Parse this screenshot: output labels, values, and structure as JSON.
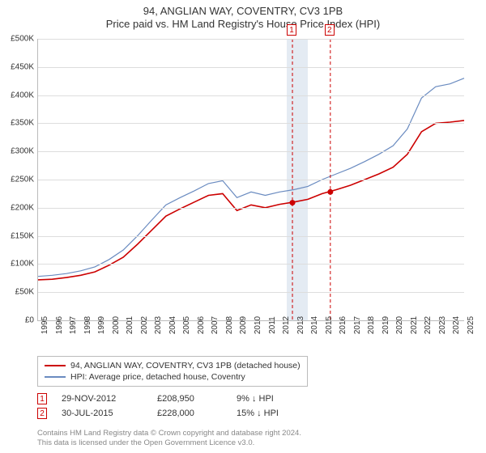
{
  "title_line1": "94, ANGLIAN WAY, COVENTRY, CV3 1PB",
  "title_line2": "Price paid vs. HM Land Registry's House Price Index (HPI)",
  "chart": {
    "type": "line",
    "x_years": [
      1995,
      1996,
      1997,
      1998,
      1999,
      2000,
      2001,
      2002,
      2003,
      2004,
      2005,
      2006,
      2007,
      2008,
      2009,
      2010,
      2011,
      2012,
      2013,
      2014,
      2015,
      2016,
      2017,
      2018,
      2019,
      2020,
      2021,
      2022,
      2023,
      2024,
      2025
    ],
    "ylim": [
      0,
      500000
    ],
    "ytick_step": 50000,
    "y_tick_labels": [
      "£0",
      "£50K",
      "£100K",
      "£150K",
      "£200K",
      "£250K",
      "£300K",
      "£350K",
      "£400K",
      "£450K",
      "£500K"
    ],
    "grid_color": "#dddddd",
    "background_color": "#ffffff",
    "shade_band_color": "#e4ebf3",
    "shade_band_years": [
      2012.5,
      2014.0
    ],
    "series": [
      {
        "name": "property",
        "label": "94, ANGLIAN WAY, COVENTRY, CV3 1PB (detached house)",
        "color": "#cc0000",
        "width": 1.6,
        "values": [
          72000,
          73000,
          76000,
          80000,
          86000,
          98000,
          112000,
          135000,
          160000,
          185000,
          198000,
          210000,
          222000,
          225000,
          195000,
          205000,
          200000,
          206000,
          210000,
          215000,
          225000,
          232000,
          240000,
          250000,
          260000,
          272000,
          295000,
          335000,
          350000,
          352000,
          355000
        ]
      },
      {
        "name": "hpi",
        "label": "HPI: Average price, detached house, Coventry",
        "color": "#6a8bc0",
        "width": 1.2,
        "values": [
          78000,
          80000,
          83000,
          88000,
          95000,
          108000,
          125000,
          150000,
          178000,
          205000,
          218000,
          230000,
          243000,
          248000,
          218000,
          228000,
          222000,
          228000,
          232000,
          238000,
          250000,
          260000,
          270000,
          282000,
          295000,
          310000,
          340000,
          395000,
          415000,
          420000,
          430000
        ]
      }
    ],
    "sale_markers": [
      {
        "n": "1",
        "year": 2012.91,
        "price": 208950,
        "color": "#cc0000"
      },
      {
        "n": "2",
        "year": 2015.58,
        "price": 228000,
        "color": "#cc0000"
      }
    ],
    "marker_line_dash": "4,3"
  },
  "legend": {
    "rows": [
      {
        "color": "#cc0000",
        "label": "94, ANGLIAN WAY, COVENTRY, CV3 1PB (detached house)"
      },
      {
        "color": "#6a8bc0",
        "label": "HPI: Average price, detached house, Coventry"
      }
    ]
  },
  "sales": [
    {
      "n": "1",
      "color": "#cc0000",
      "date": "29-NOV-2012",
      "price": "£208,950",
      "delta": "9% ↓ HPI"
    },
    {
      "n": "2",
      "color": "#cc0000",
      "date": "30-JUL-2015",
      "price": "£228,000",
      "delta": "15% ↓ HPI"
    }
  ],
  "attribution_line1": "Contains HM Land Registry data © Crown copyright and database right 2024.",
  "attribution_line2": "This data is licensed under the Open Government Licence v3.0."
}
